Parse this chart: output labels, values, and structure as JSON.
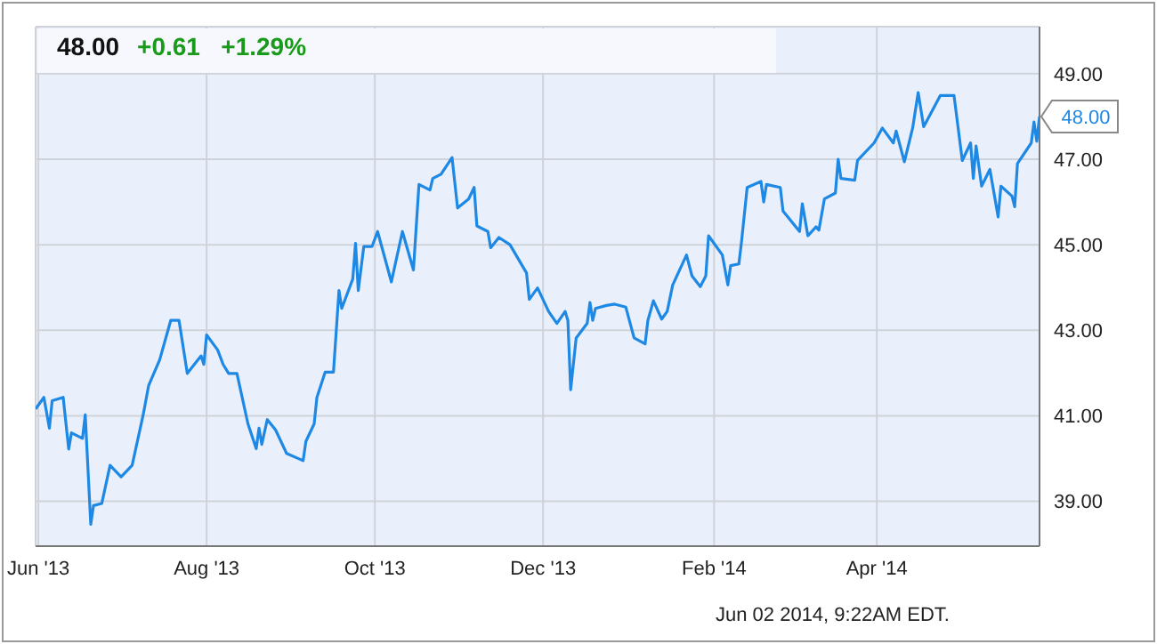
{
  "chart_data": {
    "type": "line",
    "title": "48.00",
    "subtitle": "+0.61   +1.29%",
    "x": [
      "2013-05-31",
      "2013-06-03",
      "2013-06-05",
      "2013-06-06",
      "2013-06-10",
      "2013-06-12",
      "2013-06-13",
      "2013-06-17",
      "2013-06-18",
      "2013-06-20",
      "2013-06-21",
      "2013-06-24",
      "2013-06-27",
      "2013-07-01",
      "2013-07-05",
      "2013-07-09",
      "2013-07-11",
      "2013-07-15",
      "2013-07-19",
      "2013-07-22",
      "2013-07-25",
      "2013-07-30",
      "2013-07-31",
      "2013-08-01",
      "2013-08-05",
      "2013-08-07",
      "2013-08-09",
      "2013-08-12",
      "2013-08-16",
      "2013-08-19",
      "2013-08-20",
      "2013-08-21",
      "2013-08-23",
      "2013-08-26",
      "2013-08-30",
      "2013-09-05",
      "2013-09-06",
      "2013-09-09",
      "2013-09-10",
      "2013-09-13",
      "2013-09-16",
      "2013-09-18",
      "2013-09-19",
      "2013-09-23",
      "2013-09-24",
      "2013-09-25",
      "2013-09-27",
      "2013-09-30",
      "2013-10-02",
      "2013-10-07",
      "2013-10-11",
      "2013-10-15",
      "2013-10-17",
      "2013-10-21",
      "2013-10-22",
      "2013-10-25",
      "2013-10-29",
      "2013-10-31",
      "2013-11-04",
      "2013-11-06",
      "2013-11-07",
      "2013-11-11",
      "2013-11-12",
      "2013-11-15",
      "2013-11-19",
      "2013-11-25",
      "2013-11-26",
      "2013-11-29",
      "2013-12-03",
      "2013-12-06",
      "2013-12-09",
      "2013-12-10",
      "2013-12-11",
      "2013-12-13",
      "2013-12-17",
      "2013-12-18",
      "2013-12-19",
      "2013-12-20",
      "2013-12-24",
      "2013-12-27",
      "2013-12-31",
      "2014-01-03",
      "2014-01-07",
      "2014-01-08",
      "2014-01-10",
      "2014-01-13",
      "2014-01-15",
      "2014-01-17",
      "2014-01-22",
      "2014-01-24",
      "2014-01-27",
      "2014-01-29",
      "2014-01-30",
      "2014-02-04",
      "2014-02-06",
      "2014-02-07",
      "2014-02-10",
      "2014-02-11",
      "2014-02-13",
      "2014-02-18",
      "2014-02-19",
      "2014-02-20",
      "2014-02-25",
      "2014-02-26",
      "2014-03-04",
      "2014-03-05",
      "2014-03-07",
      "2014-03-10",
      "2014-03-11",
      "2014-03-13",
      "2014-03-17",
      "2014-03-18",
      "2014-03-19",
      "2014-03-24",
      "2014-03-25",
      "2014-03-31",
      "2014-04-03",
      "2014-04-07",
      "2014-04-08",
      "2014-04-11",
      "2014-04-14",
      "2014-04-16",
      "2014-04-18",
      "2014-04-24",
      "2014-04-29",
      "2014-05-02",
      "2014-05-05",
      "2014-05-06",
      "2014-05-07",
      "2014-05-09",
      "2014-05-12",
      "2014-05-15",
      "2014-05-16",
      "2014-05-20",
      "2014-05-21",
      "2014-05-22",
      "2014-05-27",
      "2014-05-28",
      "2014-05-29",
      "2014-05-30"
    ],
    "series": [
      {
        "color": "#1e88e5",
        "values": [
          41.16,
          41.43,
          40.71,
          41.35,
          41.43,
          40.22,
          40.6,
          40.47,
          41.02,
          38.46,
          38.9,
          38.95,
          39.84,
          39.57,
          39.84,
          41.02,
          41.71,
          42.31,
          43.23,
          43.23,
          41.99,
          42.4,
          42.2,
          42.89,
          42.54,
          42.2,
          41.99,
          41.99,
          40.81,
          40.23,
          40.71,
          40.33,
          40.91,
          40.67,
          40.12,
          39.95,
          40.4,
          40.81,
          41.43,
          42.02,
          42.02,
          43.93,
          43.51,
          44.2,
          45.03,
          43.93,
          44.96,
          44.96,
          45.31,
          44.13,
          45.31,
          44.41,
          46.41,
          46.28,
          46.55,
          46.65,
          47.04,
          45.86,
          46.07,
          46.34,
          45.44,
          45.31,
          44.93,
          45.17,
          45.0,
          44.34,
          43.72,
          43.99,
          43.44,
          43.16,
          43.44,
          43.23,
          41.61,
          42.82,
          43.16,
          43.65,
          43.23,
          43.51,
          43.58,
          43.61,
          43.54,
          42.82,
          42.68,
          43.23,
          43.69,
          43.26,
          43.44,
          44.06,
          44.76,
          44.27,
          44.02,
          44.27,
          45.21,
          44.76,
          44.06,
          44.51,
          44.55,
          45.1,
          46.34,
          46.48,
          46.0,
          46.41,
          46.34,
          45.79,
          45.31,
          45.96,
          45.21,
          45.42,
          45.34,
          46.07,
          46.21,
          47.0,
          46.55,
          46.51,
          46.97,
          47.38,
          47.73,
          47.38,
          47.66,
          46.94,
          47.73,
          48.56,
          47.76,
          48.49,
          48.49,
          46.97,
          47.38,
          46.55,
          47.31,
          46.37,
          46.76,
          45.65,
          46.37,
          46.14,
          45.89,
          46.9,
          47.38,
          47.87,
          47.42,
          48.0
        ]
      }
    ],
    "xlim": [
      "2013-05-31",
      "2014-05-30"
    ],
    "xticks": [
      {
        "value": "2013-06-01",
        "label": "Jun '13"
      },
      {
        "value": "2013-08-01",
        "label": "Aug '13"
      },
      {
        "value": "2013-10-01",
        "label": "Oct '13"
      },
      {
        "value": "2013-12-01",
        "label": "Dec '13"
      },
      {
        "value": "2014-02-01",
        "label": "Feb '14"
      },
      {
        "value": "2014-04-01",
        "label": "Apr '14"
      }
    ],
    "ylim": [
      37.95,
      50.1
    ],
    "yticks": [
      {
        "value": 39,
        "label": "39.00"
      },
      {
        "value": 41,
        "label": "41.00"
      },
      {
        "value": 43,
        "label": "43.00"
      },
      {
        "value": 45,
        "label": "45.00"
      },
      {
        "value": 47,
        "label": "47.00"
      },
      {
        "value": 49,
        "label": "49.00"
      }
    ],
    "grid": true,
    "legend": false,
    "marker": "none",
    "line_style": "solid",
    "annotations": [
      {
        "text": "48.00",
        "x": "2014-05-30",
        "y": 48.0
      },
      "Jun 02 2014, 9:22AM EDT."
    ]
  }
}
